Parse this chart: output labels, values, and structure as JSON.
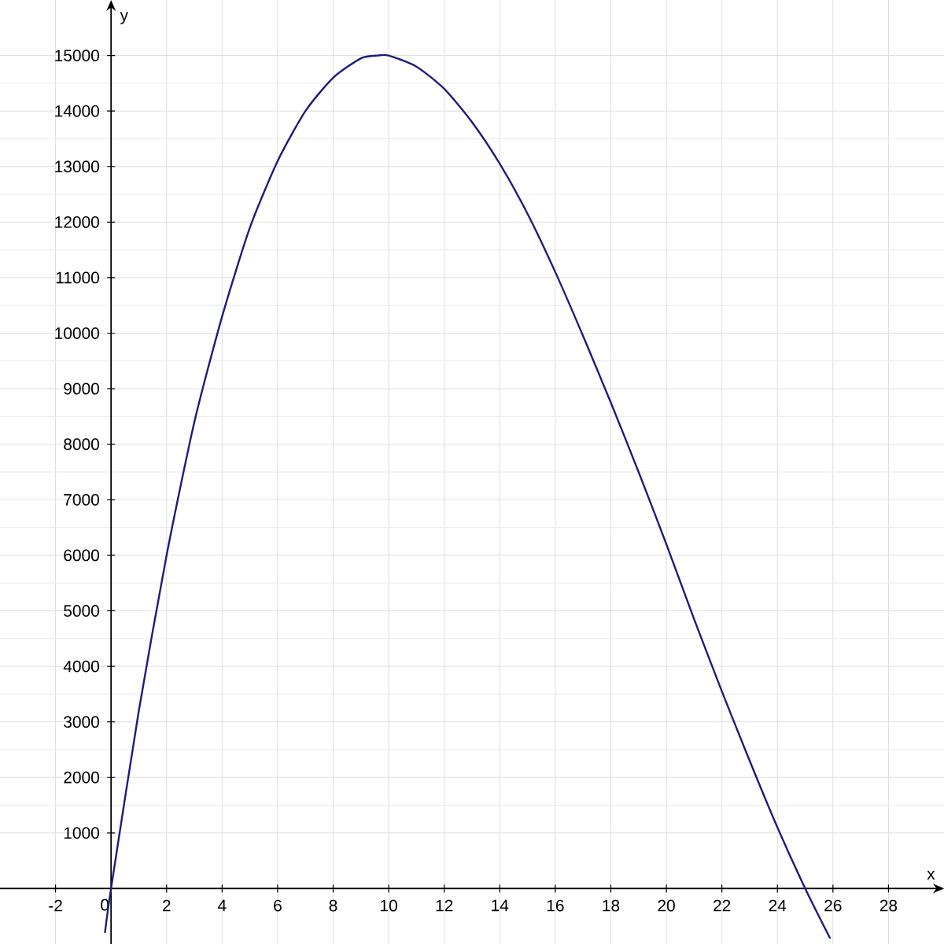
{
  "chart_data": {
    "type": "line",
    "xlabel": "x",
    "ylabel": "y",
    "x": [
      -0.22,
      0,
      1,
      2,
      3,
      4,
      5,
      6,
      7,
      8,
      9,
      9.6,
      10,
      11,
      12,
      13,
      14,
      15,
      16,
      17,
      18,
      19,
      20,
      21,
      22,
      23,
      24,
      25,
      25.9
    ],
    "series": [
      {
        "color": "#1c1c7c",
        "values": [
          -800,
          0,
          3200,
          6000,
          8400,
          10300,
          11900,
          13100,
          14000,
          14600,
          14950,
          15000,
          15000,
          14800,
          14400,
          13800,
          13050,
          12150,
          11100,
          9950,
          8750,
          7500,
          6200,
          4850,
          3550,
          2300,
          1100,
          0,
          -900
        ]
      }
    ],
    "xlim": [
      -4,
      30
    ],
    "ylim": [
      -1000,
      16000
    ],
    "xticks": [
      -2,
      0,
      2,
      4,
      6,
      8,
      10,
      12,
      14,
      16,
      18,
      20,
      22,
      24,
      26,
      28
    ],
    "yticks": [
      1000,
      2000,
      3000,
      4000,
      5000,
      6000,
      7000,
      8000,
      9000,
      10000,
      11000,
      12000,
      13000,
      14000,
      15000
    ],
    "grid": true
  }
}
